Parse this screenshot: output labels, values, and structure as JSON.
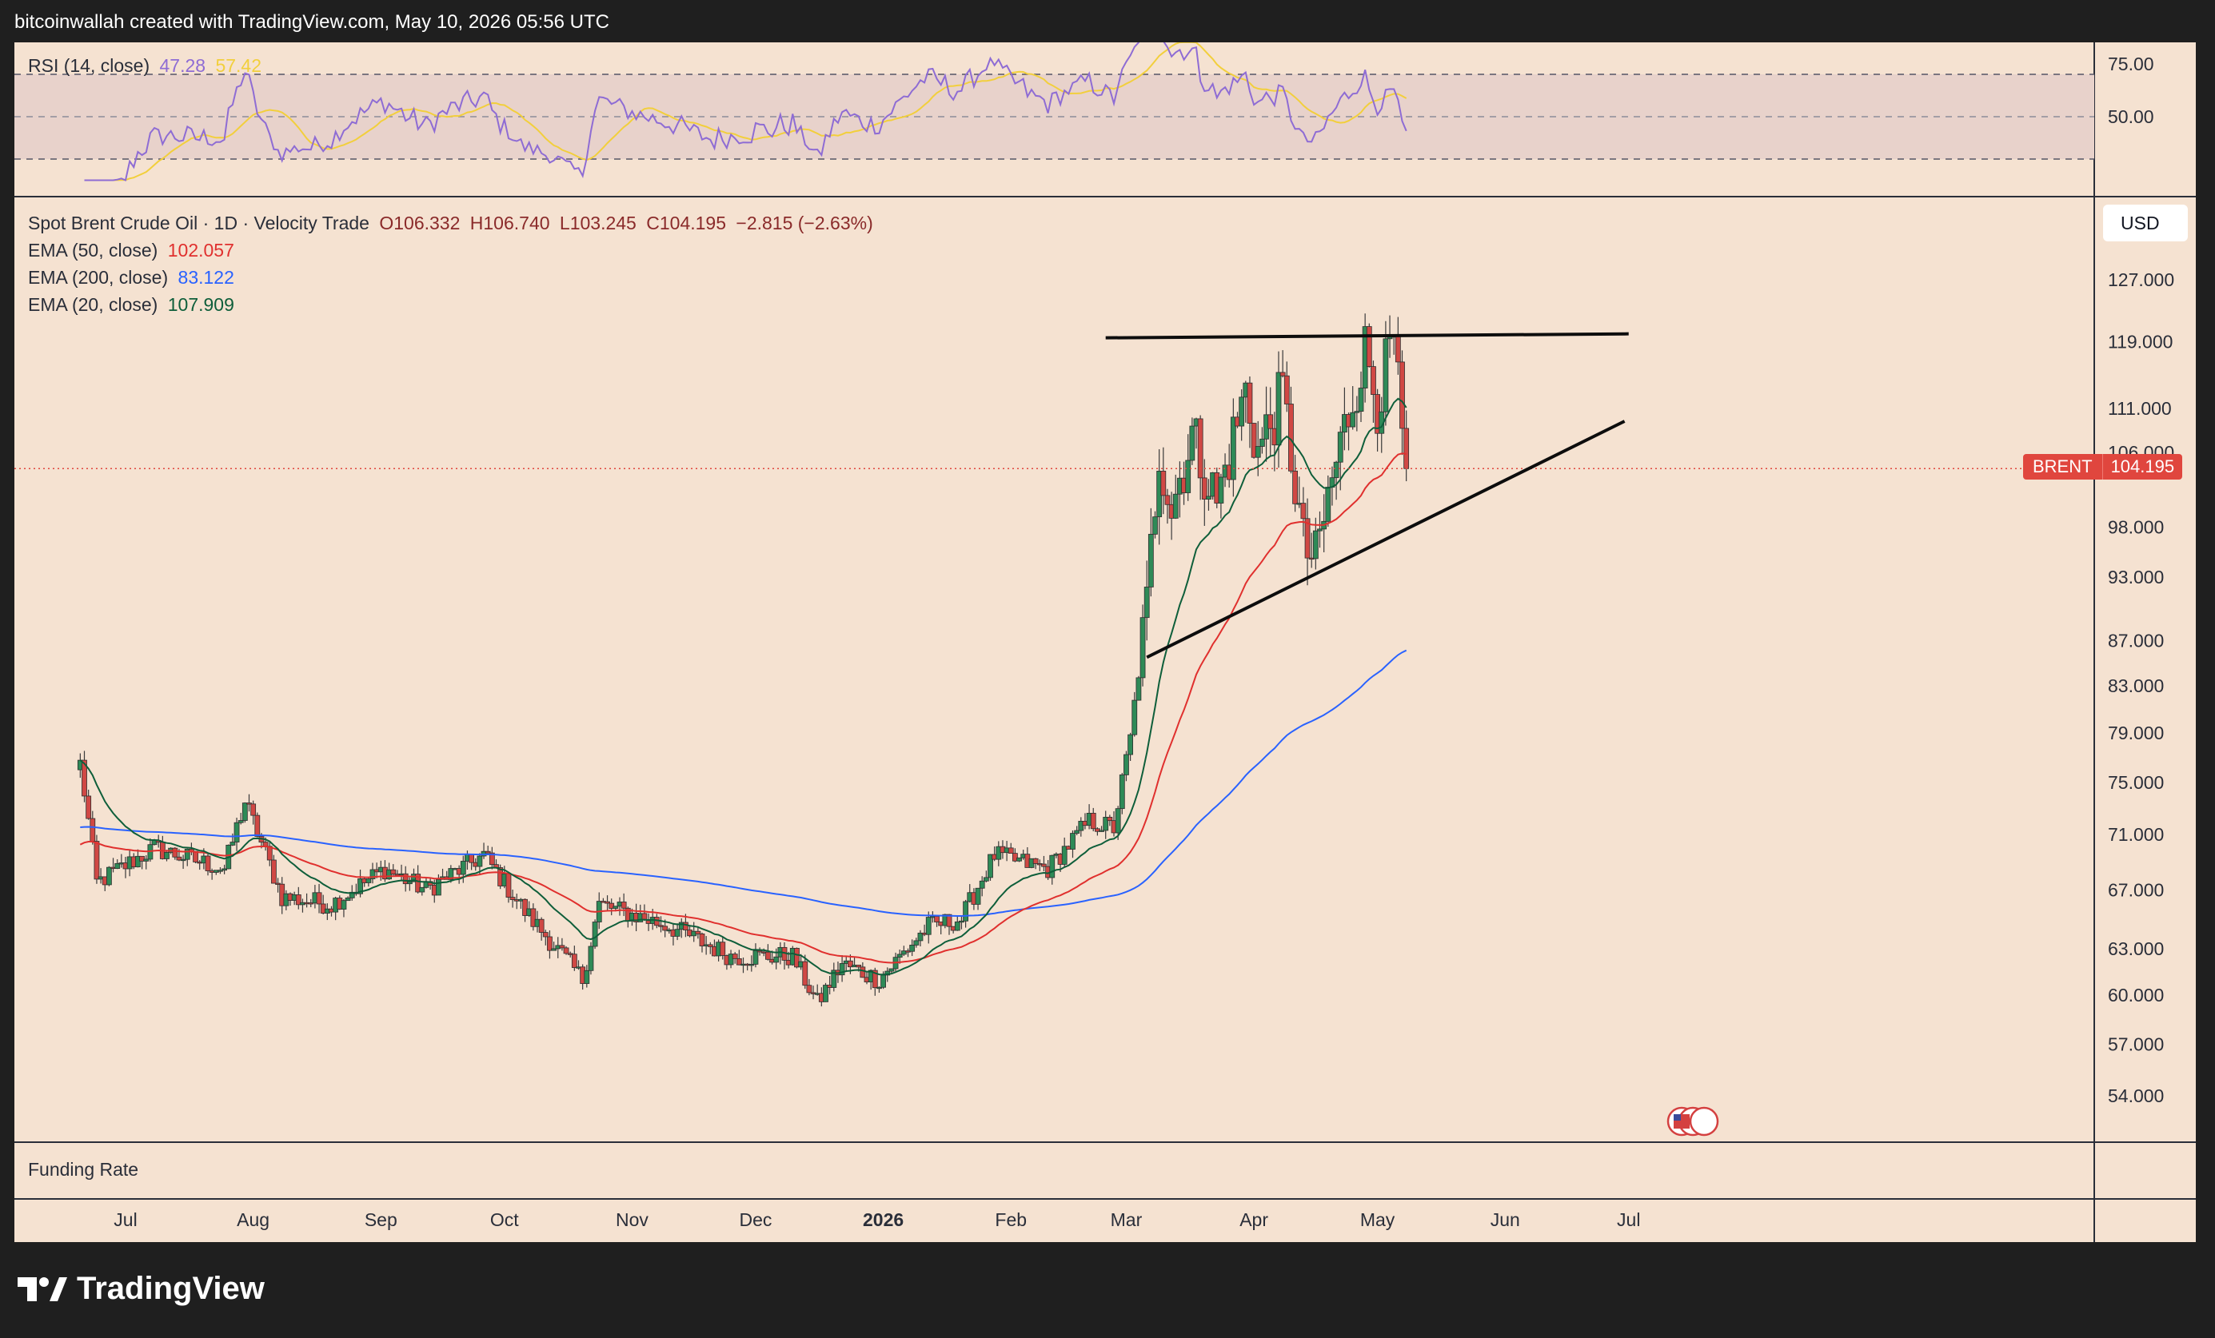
{
  "header": {
    "attribution": "bitcoinwallah created with TradingView.com, May 10, 2026 05:56 UTC"
  },
  "rsi_legend": {
    "label": "RSI (14, close)",
    "rsi_value": "47.28",
    "ma_value": "57.42"
  },
  "main_legend": {
    "symbol": "Spot Brent Crude Oil · 1D · Velocity Trade",
    "open": "O106.332",
    "high": "H106.740",
    "low": "L103.245",
    "close": "C104.195",
    "change": "−2.815 (−2.63%)"
  },
  "ema_legend": [
    {
      "label": "EMA (50, close)",
      "value": "102.057",
      "color": "#e0302e"
    },
    {
      "label": "EMA (200, close)",
      "value": "83.122",
      "color": "#2962ff"
    },
    {
      "label": "EMA (20, close)",
      "value": "107.909",
      "color": "#0e5e3a"
    }
  ],
  "currency": "USD",
  "price_tag": {
    "symbol": "BRENT",
    "value": "104.195"
  },
  "funding_pane": {
    "label": "Funding Rate"
  },
  "footer": {
    "brand": "TradingView"
  },
  "colors": {
    "up": "#2e8a57",
    "down": "#d04844",
    "rsi": "#8e6cd4",
    "rsi_ma": "#f2cf3c",
    "background": "#f5e2d1"
  },
  "chart_data": {
    "type": "candlestick",
    "title": "Spot Brent Crude Oil · 1D · Velocity Trade",
    "x_ticks": [
      "Jul",
      "Aug",
      "Sep",
      "Oct",
      "Nov",
      "Dec",
      "2026",
      "Feb",
      "Mar",
      "Apr",
      "May",
      "Jun",
      "Jul"
    ],
    "y_ticks": [
      "127.000",
      "119.000",
      "111.000",
      "106.000",
      "98.000",
      "93.000",
      "87.000",
      "83.000",
      "79.000",
      "75.000",
      "71.000",
      "67.000",
      "63.000",
      "60.000",
      "57.000",
      "54.000"
    ],
    "y_scale": "log",
    "last_price": 104.195,
    "close_anchors": [
      [
        "2025-06-20",
        76.5
      ],
      [
        "2025-06-24",
        67.5
      ],
      [
        "2025-07-08",
        70.0
      ],
      [
        "2025-07-25",
        68.5
      ],
      [
        "2025-07-30",
        73.5
      ],
      [
        "2025-08-08",
        66.5
      ],
      [
        "2025-08-20",
        66.0
      ],
      [
        "2025-09-02",
        68.5
      ],
      [
        "2025-09-12",
        67.0
      ],
      [
        "2025-09-26",
        69.5
      ],
      [
        "2025-10-06",
        65.5
      ],
      [
        "2025-10-20",
        61.0
      ],
      [
        "2025-10-24",
        66.0
      ],
      [
        "2025-11-10",
        64.5
      ],
      [
        "2025-11-25",
        62.5
      ],
      [
        "2025-12-10",
        62.5
      ],
      [
        "2025-12-16",
        59.5
      ],
      [
        "2025-12-22",
        62.0
      ],
      [
        "2025-12-31",
        61.0
      ],
      [
        "2026-01-12",
        64.5
      ],
      [
        "2026-01-20",
        65.0
      ],
      [
        "2026-01-28",
        69.5
      ],
      [
        "2026-02-10",
        68.5
      ],
      [
        "2026-02-20",
        72.0
      ],
      [
        "2026-02-26",
        71.5
      ],
      [
        "2026-03-02",
        78.5
      ],
      [
        "2026-03-06",
        90.0
      ],
      [
        "2026-03-09",
        106.5
      ],
      [
        "2026-03-12",
        100.0
      ],
      [
        "2026-03-17",
        108.0
      ],
      [
        "2026-03-23",
        100.5
      ],
      [
        "2026-03-30",
        113.0
      ],
      [
        "2026-04-02",
        106.0
      ],
      [
        "2026-04-08",
        112.5
      ],
      [
        "2026-04-13",
        96.0
      ],
      [
        "2026-04-16",
        94.5
      ],
      [
        "2026-04-20",
        103.0
      ],
      [
        "2026-04-28",
        118.0
      ],
      [
        "2026-05-01",
        112.0
      ],
      [
        "2026-05-05",
        119.0
      ],
      [
        "2026-05-07",
        106.5
      ],
      [
        "2026-05-08",
        104.195
      ]
    ],
    "ema_series": [
      {
        "name": "EMA (20, close)",
        "last": 107.909,
        "color": "#0e5e3a"
      },
      {
        "name": "EMA (50, close)",
        "last": 102.057,
        "color": "#e0302e"
      },
      {
        "name": "EMA (200, close)",
        "last": 83.122,
        "color": "#2962ff"
      }
    ],
    "rsi": {
      "label": "RSI (14, close)",
      "last": 47.28,
      "ma_last": 57.42,
      "levels": [
        70,
        50,
        30
      ],
      "y_ticks": [
        "75.00",
        "50.00"
      ]
    },
    "trendlines": [
      {
        "name": "resistance",
        "from": [
          "2026-02-24",
          119.5
        ],
        "to": [
          "2026-07-01",
          120.0
        ]
      },
      {
        "name": "rising-support",
        "from": [
          "2026-03-06",
          85.5
        ],
        "to": [
          "2026-06-30",
          109.5
        ]
      }
    ]
  }
}
